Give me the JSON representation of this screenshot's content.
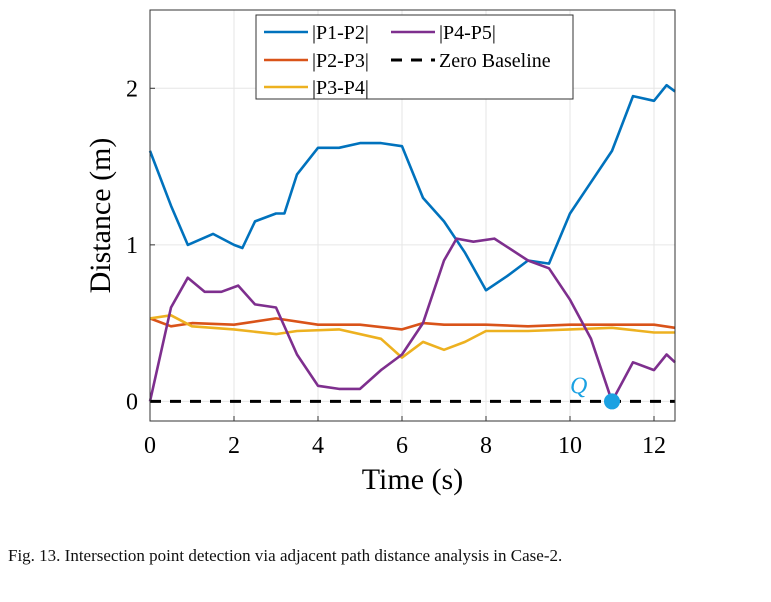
{
  "chart_data": {
    "type": "line",
    "xlabel": "Time (s)",
    "ylabel": "Distance (m)",
    "xlim": [
      0,
      12.5
    ],
    "ylim": [
      -0.125,
      2.5
    ],
    "xticks": [
      0,
      2,
      4,
      6,
      8,
      10,
      12
    ],
    "yticks": [
      0,
      1,
      2
    ],
    "grid": true,
    "legend_position": "top",
    "series": [
      {
        "name": "|P1-P2|",
        "color": "#0072BD",
        "dash": false,
        "x": [
          0,
          0.5,
          0.9,
          1.5,
          2.0,
          2.2,
          2.5,
          3.0,
          3.2,
          3.5,
          4.0,
          4.5,
          5.0,
          5.5,
          6.0,
          6.5,
          7.0,
          7.5,
          8.0,
          8.5,
          9.0,
          9.5,
          10.0,
          10.5,
          11.0,
          11.5,
          12.0,
          12.3,
          12.5
        ],
        "y": [
          1.6,
          1.25,
          1.0,
          1.07,
          1.0,
          0.98,
          1.15,
          1.2,
          1.2,
          1.45,
          1.62,
          1.62,
          1.65,
          1.65,
          1.63,
          1.3,
          1.15,
          0.95,
          0.71,
          0.8,
          0.9,
          0.88,
          1.2,
          1.4,
          1.6,
          1.95,
          1.92,
          2.02,
          1.98
        ]
      },
      {
        "name": "|P2-P3|",
        "color": "#D95319",
        "dash": false,
        "x": [
          0,
          0.5,
          1,
          2,
          3,
          4,
          5,
          6,
          6.5,
          7,
          8,
          9,
          10,
          11,
          12,
          12.5
        ],
        "y": [
          0.53,
          0.48,
          0.5,
          0.49,
          0.53,
          0.49,
          0.49,
          0.46,
          0.5,
          0.49,
          0.49,
          0.48,
          0.49,
          0.49,
          0.49,
          0.47
        ]
      },
      {
        "name": "|P3-P4|",
        "color": "#EDB120",
        "dash": false,
        "x": [
          0,
          0.5,
          1,
          2,
          3,
          3.5,
          4.5,
          5.5,
          6,
          6.5,
          7,
          7.5,
          8,
          9,
          10,
          11,
          12,
          12.5
        ],
        "y": [
          0.53,
          0.55,
          0.48,
          0.46,
          0.43,
          0.45,
          0.46,
          0.4,
          0.28,
          0.38,
          0.33,
          0.38,
          0.45,
          0.45,
          0.46,
          0.47,
          0.44,
          0.44
        ]
      },
      {
        "name": "|P4-P5|",
        "color": "#7E2F8E",
        "dash": false,
        "x": [
          0,
          0.5,
          0.9,
          1.3,
          1.7,
          2.1,
          2.5,
          3.0,
          3.5,
          4.0,
          4.5,
          5.0,
          5.5,
          6.0,
          6.5,
          7.0,
          7.3,
          7.7,
          8.2,
          9.0,
          9.5,
          10.0,
          10.5,
          11.0,
          11.5,
          12.0,
          12.3,
          12.5
        ],
        "y": [
          0.0,
          0.6,
          0.79,
          0.7,
          0.7,
          0.74,
          0.62,
          0.6,
          0.3,
          0.1,
          0.08,
          0.08,
          0.2,
          0.3,
          0.5,
          0.9,
          1.04,
          1.02,
          1.04,
          0.9,
          0.85,
          0.65,
          0.4,
          0.0,
          0.25,
          0.2,
          0.3,
          0.25
        ]
      },
      {
        "name": "Zero Baseline",
        "color": "#000000",
        "dash": true,
        "x": [
          0,
          12.5
        ],
        "y": [
          0,
          0
        ]
      }
    ],
    "annotations": [
      {
        "text": "Q",
        "x": 11,
        "y": 0,
        "color": "#1BA1E2"
      }
    ]
  },
  "caption": "Fig. 13.  Intersection point detection via adjacent path distance analysis in Case-2."
}
